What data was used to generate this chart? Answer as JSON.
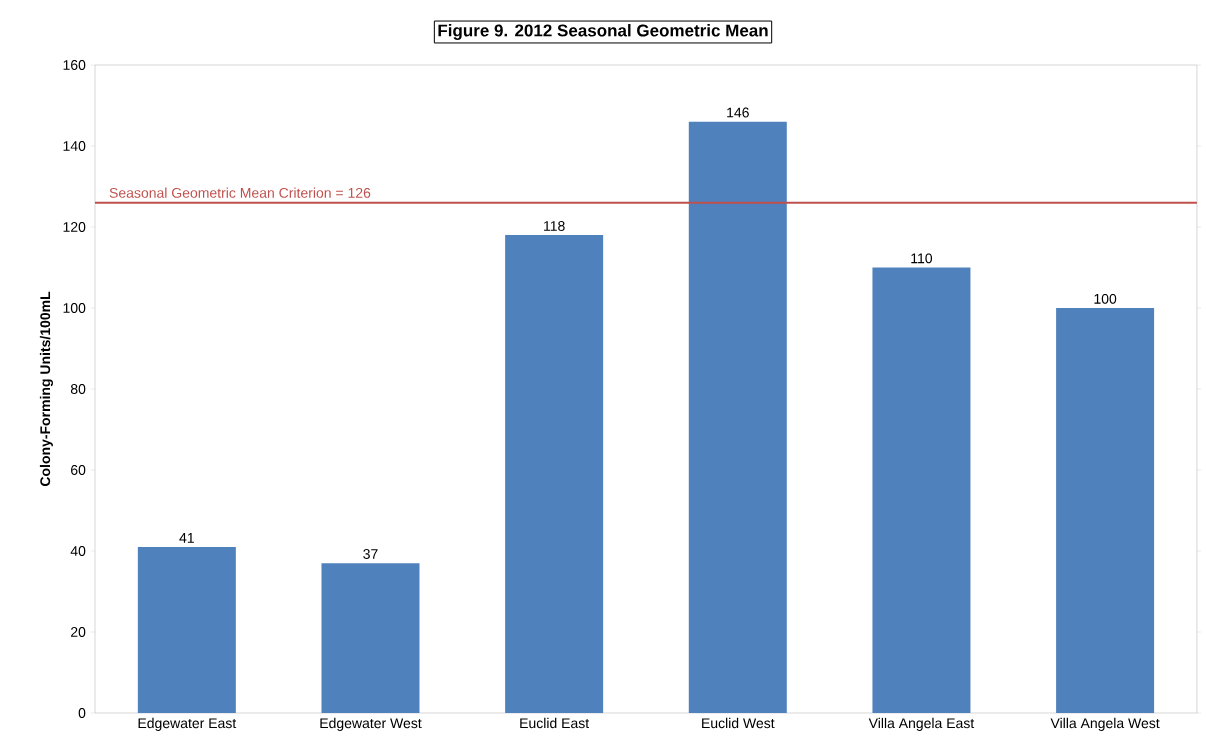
{
  "chart_data": {
    "type": "bar",
    "title": "Figure 9. 2012 Seasonal Geometric Mean",
    "ylabel": "Colony-Forming Units/100mL",
    "categories": [
      "Edgewater East",
      "Edgewater West",
      "Euclid East",
      "Euclid West",
      "Villa Angela East",
      "Villa Angela West"
    ],
    "values": [
      41,
      37,
      118,
      146,
      110,
      100
    ],
    "color": "#4f81bd",
    "ylim": [
      0,
      160
    ],
    "yticks": [
      0,
      20,
      40,
      60,
      80,
      100,
      120,
      140,
      160
    ],
    "data_labels": true,
    "ref_lines": [
      {
        "axis": "y",
        "value": 126,
        "label": "Seasonal Geometric Mean Criterion = 126",
        "color": "#c0504d"
      }
    ]
  }
}
